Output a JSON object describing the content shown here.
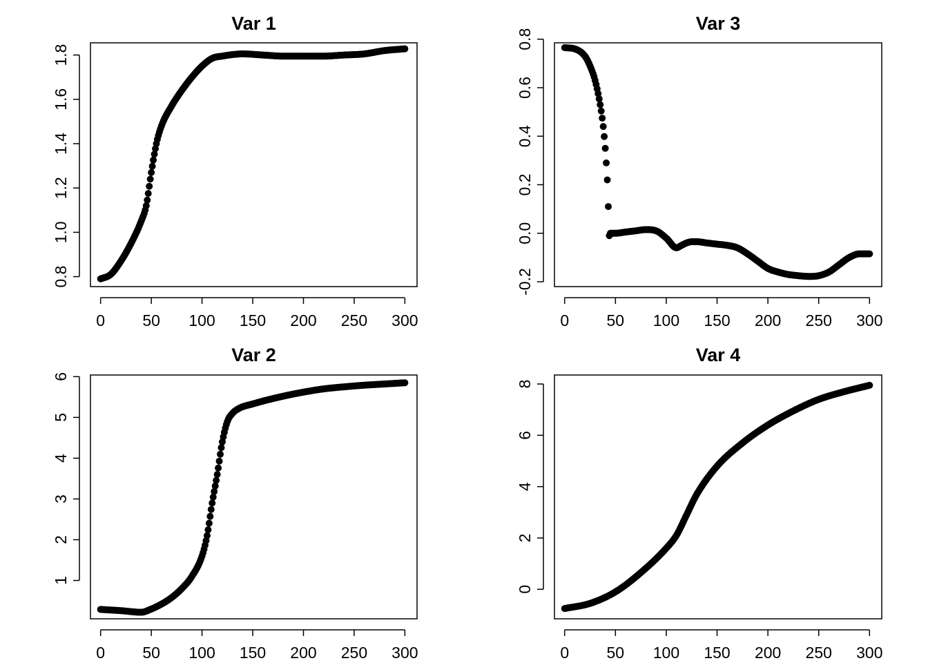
{
  "chart_data": [
    {
      "type": "scatter",
      "title": "Var 1",
      "xlabel": "",
      "ylabel": "",
      "xlim": [
        -10,
        312
      ],
      "ylim": [
        0.755,
        1.855
      ],
      "xticks": [
        0,
        50,
        100,
        150,
        200,
        250,
        300
      ],
      "yticks": [
        0.8,
        1.0,
        1.2,
        1.4,
        1.6,
        1.8
      ],
      "ytick_labels": [
        "0.8",
        "1.0",
        "1.2",
        "1.4",
        "1.6",
        "1.8"
      ],
      "keypoints_x": [
        0,
        10,
        20,
        30,
        40,
        45,
        50,
        55,
        60,
        70,
        80,
        90,
        100,
        110,
        120,
        140,
        160,
        180,
        200,
        220,
        240,
        260,
        280,
        300
      ],
      "keypoints_y": [
        0.79,
        0.81,
        0.87,
        0.95,
        1.05,
        1.12,
        1.27,
        1.4,
        1.48,
        1.57,
        1.64,
        1.7,
        1.75,
        1.785,
        1.795,
        1.805,
        1.8,
        1.795,
        1.795,
        1.795,
        1.8,
        1.805,
        1.82,
        1.828
      ]
    },
    {
      "type": "scatter",
      "title": "Var 3",
      "xlabel": "",
      "ylabel": "",
      "xlim": [
        -10,
        312
      ],
      "ylim": [
        -0.22,
        0.785
      ],
      "xticks": [
        0,
        50,
        100,
        150,
        200,
        250,
        300
      ],
      "yticks": [
        -0.2,
        0.0,
        0.2,
        0.4,
        0.6,
        0.8
      ],
      "ytick_labels": [
        "-0.2",
        "0.0",
        "0.2",
        "0.4",
        "0.6",
        "0.8"
      ],
      "keypoints_x": [
        0,
        10,
        20,
        25,
        30,
        35,
        38,
        40,
        41,
        42,
        43,
        44,
        45,
        50,
        60,
        70,
        80,
        90,
        100,
        110,
        115,
        120,
        125,
        130,
        140,
        150,
        160,
        170,
        180,
        190,
        200,
        210,
        220,
        230,
        240,
        250,
        260,
        270,
        280,
        290,
        300
      ],
      "keypoints_y": [
        0.765,
        0.76,
        0.73,
        0.69,
        0.63,
        0.53,
        0.44,
        0.35,
        0.29,
        0.22,
        0.11,
        -0.01,
        0.0,
        0.0,
        0.005,
        0.01,
        0.015,
        0.01,
        -0.02,
        -0.06,
        -0.05,
        -0.04,
        -0.035,
        -0.035,
        -0.04,
        -0.045,
        -0.05,
        -0.06,
        -0.085,
        -0.115,
        -0.145,
        -0.16,
        -0.17,
        -0.175,
        -0.178,
        -0.175,
        -0.16,
        -0.13,
        -0.1,
        -0.085,
        -0.085
      ]
    },
    {
      "type": "scatter",
      "title": "Var 2",
      "xlabel": "",
      "ylabel": "",
      "xlim": [
        -10,
        312
      ],
      "ylim": [
        0.06,
        6.04
      ],
      "xticks": [
        0,
        50,
        100,
        150,
        200,
        250,
        300
      ],
      "yticks": [
        1,
        2,
        3,
        4,
        5,
        6
      ],
      "ytick_labels": [
        "1",
        "2",
        "3",
        "4",
        "5",
        "6"
      ],
      "keypoints_x": [
        0,
        20,
        40,
        50,
        60,
        70,
        80,
        90,
        100,
        105,
        110,
        115,
        120,
        125,
        130,
        135,
        140,
        150,
        160,
        180,
        200,
        220,
        240,
        260,
        280,
        300
      ],
      "keypoints_y": [
        0.29,
        0.26,
        0.22,
        0.3,
        0.42,
        0.58,
        0.8,
        1.1,
        1.6,
        2.1,
        2.9,
        3.6,
        4.4,
        4.9,
        5.1,
        5.2,
        5.26,
        5.33,
        5.4,
        5.52,
        5.62,
        5.7,
        5.75,
        5.79,
        5.82,
        5.85
      ]
    },
    {
      "type": "scatter",
      "title": "Var 4",
      "xlabel": "",
      "ylabel": "",
      "xlim": [
        -10,
        312
      ],
      "ylim": [
        -1.15,
        8.35
      ],
      "xticks": [
        0,
        50,
        100,
        150,
        200,
        250,
        300
      ],
      "yticks": [
        0,
        2,
        4,
        6,
        8
      ],
      "ytick_labels": [
        "0",
        "2",
        "4",
        "6",
        "8"
      ],
      "keypoints_x": [
        0,
        25,
        50,
        75,
        100,
        110,
        120,
        130,
        150,
        175,
        200,
        225,
        250,
        275,
        300
      ],
      "keypoints_y": [
        -0.75,
        -0.55,
        -0.1,
        0.65,
        1.6,
        2.1,
        2.9,
        3.7,
        4.8,
        5.7,
        6.4,
        6.95,
        7.4,
        7.7,
        7.95
      ]
    }
  ]
}
